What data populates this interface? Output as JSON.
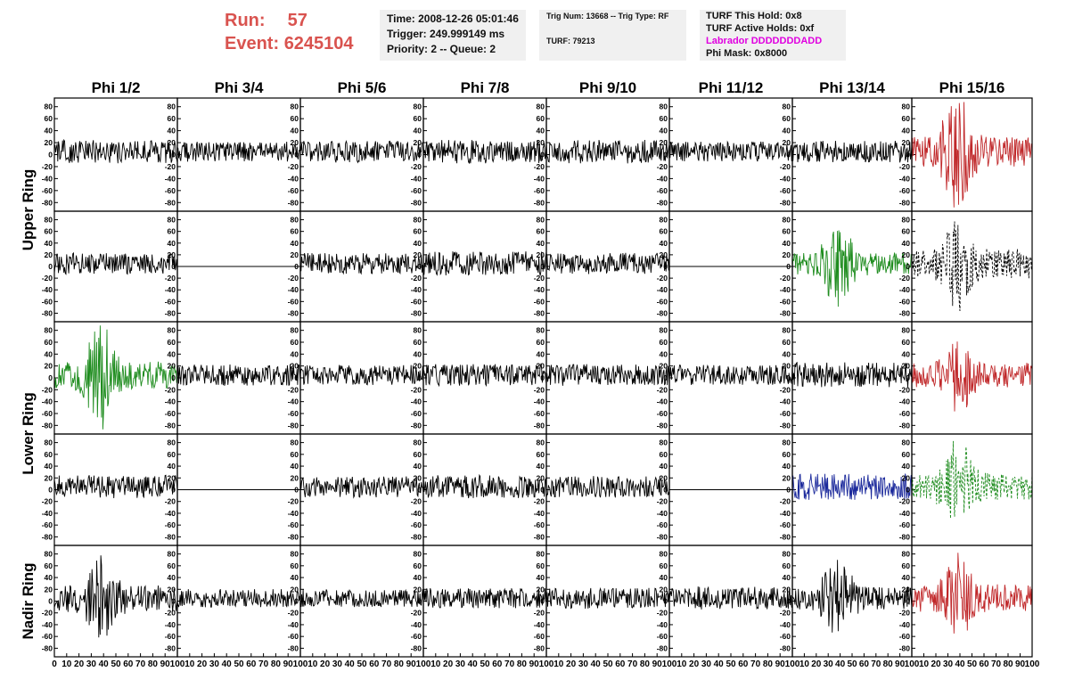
{
  "run_info": {
    "run_label": "Run:",
    "run_value": "57",
    "event_label": "Event:",
    "event_value": "6245104",
    "accent_color": "#d9534f"
  },
  "time_panel": {
    "time": "Time: 2008-12-26 05:01:46",
    "trigger": "Trigger: 249.999149 ms",
    "priority": "Priority: 2 -- Queue: 2"
  },
  "trig_panel": {
    "trig": "Trig Num: 13668 -- Trig Type: RF",
    "turf": "TURF: 79213"
  },
  "turf_panel": {
    "this_hold": "TURF This Hold: 0x8",
    "active_holds": "TURF Active Holds: 0xf",
    "labrador": "Labrador DDDDDDDADD",
    "phi_mask": "Phi Mask: 0x8000",
    "labrador_color": "#e000e0"
  },
  "chart_data": {
    "type": "line",
    "description_of_layout": "grid",
    "columns": [
      "Phi 1/2",
      "Phi 3/4",
      "Phi 5/6",
      "Phi 7/8",
      "Phi 9/10",
      "Phi 11/12",
      "Phi 13/14",
      "Phi 15/16"
    ],
    "row_groups": [
      {
        "label": "Upper Ring",
        "rows": [
          0,
          1
        ]
      },
      {
        "label": "Lower Ring",
        "rows": [
          2,
          3
        ]
      },
      {
        "label": "Nadir Ring",
        "rows": [
          4
        ]
      }
    ],
    "ylim": [
      -90,
      90
    ],
    "yticks": [
      "80",
      "60",
      "40",
      "20",
      "0",
      "-20",
      "-40",
      "-60",
      "-80"
    ],
    "xlim": [
      0,
      100
    ],
    "xticks_first": [
      "0",
      "10",
      "20",
      "30",
      "40",
      "50",
      "60",
      "70",
      "80",
      "90",
      "100"
    ],
    "xticks": [
      "10",
      "20",
      "30",
      "40",
      "50",
      "60",
      "70",
      "80",
      "90",
      "100"
    ],
    "colors": {
      "black": "#000000",
      "red": "#c0282a",
      "green": "#1e8c1e",
      "blue": "#1c2a9c"
    },
    "cells": [
      [
        {
          "color": "black",
          "amp": 14,
          "dash": false,
          "burst": false
        },
        {
          "color": "black",
          "amp": 12,
          "dash": false,
          "burst": false
        },
        {
          "color": "black",
          "amp": 13,
          "dash": false,
          "burst": false
        },
        {
          "color": "black",
          "amp": 14,
          "dash": false,
          "burst": false
        },
        {
          "color": "black",
          "amp": 14,
          "dash": false,
          "burst": false
        },
        {
          "color": "black",
          "amp": 12,
          "dash": false,
          "burst": false
        },
        {
          "color": "black",
          "amp": 13,
          "dash": false,
          "burst": false
        },
        {
          "color": "red",
          "amp": 18,
          "dash": false,
          "burst": true,
          "peak": 85
        }
      ],
      [
        {
          "color": "black",
          "amp": 13,
          "dash": false,
          "burst": false
        },
        {
          "color": "black",
          "amp": 0,
          "dash": false,
          "burst": false
        },
        {
          "color": "black",
          "amp": 13,
          "dash": false,
          "burst": false
        },
        {
          "color": "black",
          "amp": 15,
          "dash": false,
          "burst": false
        },
        {
          "color": "black",
          "amp": 13,
          "dash": false,
          "burst": false
        },
        {
          "color": "black",
          "amp": 0,
          "dash": false,
          "burst": false
        },
        {
          "color": "green",
          "amp": 14,
          "dash": false,
          "burst": true,
          "peak": 60
        },
        {
          "color": "black",
          "amp": 18,
          "dash": true,
          "burst": true,
          "peak": 70
        }
      ],
      [
        {
          "color": "green",
          "amp": 16,
          "dash": false,
          "burst": true,
          "peak": 78
        },
        {
          "color": "black",
          "amp": 13,
          "dash": false,
          "burst": false
        },
        {
          "color": "black",
          "amp": 12,
          "dash": false,
          "burst": false
        },
        {
          "color": "black",
          "amp": 13,
          "dash": false,
          "burst": false
        },
        {
          "color": "black",
          "amp": 13,
          "dash": false,
          "burst": false
        },
        {
          "color": "black",
          "amp": 12,
          "dash": false,
          "burst": false
        },
        {
          "color": "black",
          "amp": 15,
          "dash": false,
          "burst": false
        },
        {
          "color": "red",
          "amp": 15,
          "dash": false,
          "burst": true,
          "peak": 58
        }
      ],
      [
        {
          "color": "black",
          "amp": 14,
          "dash": false,
          "burst": false
        },
        {
          "color": "black",
          "amp": 0,
          "dash": false,
          "burst": false
        },
        {
          "color": "black",
          "amp": 13,
          "dash": false,
          "burst": false
        },
        {
          "color": "black",
          "amp": 14,
          "dash": false,
          "burst": false
        },
        {
          "color": "black",
          "amp": 13,
          "dash": false,
          "burst": false
        },
        {
          "color": "black",
          "amp": 0,
          "dash": false,
          "burst": false
        },
        {
          "color": "blue",
          "amp": 16,
          "dash": false,
          "burst": false
        },
        {
          "color": "green",
          "amp": 16,
          "dash": true,
          "burst": true,
          "peak": 70
        }
      ],
      [
        {
          "color": "black",
          "amp": 17,
          "dash": false,
          "burst": true,
          "peak": 60
        },
        {
          "color": "black",
          "amp": 11,
          "dash": false,
          "burst": false
        },
        {
          "color": "black",
          "amp": 11,
          "dash": false,
          "burst": false
        },
        {
          "color": "black",
          "amp": 12,
          "dash": false,
          "burst": false
        },
        {
          "color": "black",
          "amp": 13,
          "dash": false,
          "burst": false
        },
        {
          "color": "black",
          "amp": 14,
          "dash": false,
          "burst": false
        },
        {
          "color": "black",
          "amp": 14,
          "dash": false,
          "burst": true,
          "peak": 60
        },
        {
          "color": "red",
          "amp": 17,
          "dash": false,
          "burst": true,
          "peak": 62
        }
      ]
    ]
  }
}
